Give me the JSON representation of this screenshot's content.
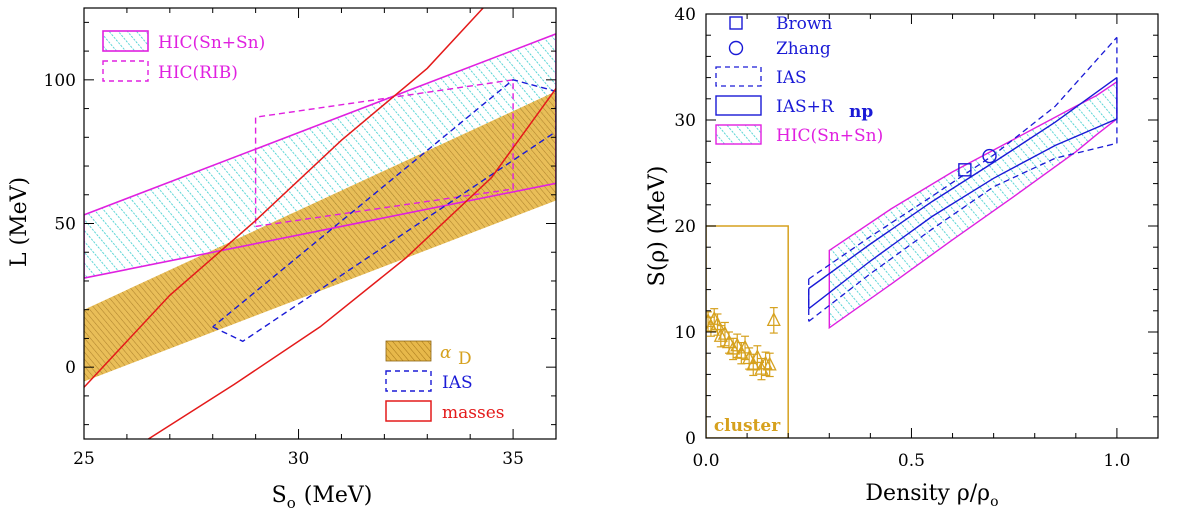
{
  "colors": {
    "magenta": "#e020e0",
    "cyan": "#33cccc",
    "gold": "#d6a11e",
    "blue": "#1a1ad6",
    "red": "#e41a1a"
  },
  "chart_data": [
    {
      "type": "area",
      "xlabel": "S",
      "xlabel_sub": "o",
      "xlabel_unit": "(MeV)",
      "ylabel": "L (MeV)",
      "xlim": [
        25,
        36
      ],
      "ylim": [
        -25,
        125
      ],
      "xticks": [
        25,
        30,
        35
      ],
      "yticks": [
        0,
        50,
        100
      ],
      "legend_upper": [
        {
          "label": "HIC(Sn+Sn)",
          "key": "hic_snsn"
        },
        {
          "label": "HIC(RIB)",
          "key": "hic_rib"
        }
      ],
      "legend_lower": [
        {
          "label": "α",
          "sub": "D",
          "key": "alpha_d"
        },
        {
          "label": "IAS",
          "key": "ias"
        },
        {
          "label": "masses",
          "key": "masses"
        }
      ],
      "series": {
        "hic_snsn": {
          "polygon": [
            [
              25,
              31
            ],
            [
              36,
              64
            ],
            [
              36,
              116
            ],
            [
              25,
              53
            ]
          ]
        },
        "hic_rib": {
          "polygon": [
            [
              29,
              49
            ],
            [
              35,
              62
            ],
            [
              35,
              100
            ],
            [
              29,
              87
            ]
          ]
        },
        "alpha_d": {
          "polygon": [
            [
              25,
              -5
            ],
            [
              36,
              58
            ],
            [
              36,
              96
            ],
            [
              25,
              20
            ]
          ]
        },
        "ias": {
          "polygon": [
            [
              28.0,
              14
            ],
            [
              28.7,
              9
            ],
            [
              36,
              82
            ],
            [
              36,
              96
            ],
            [
              35,
              100
            ],
            [
              28.0,
              14
            ]
          ]
        },
        "masses": {
          "lines": [
            [
              [
                25,
                -7
              ],
              [
                27,
                25
              ],
              [
                29,
                51
              ],
              [
                31,
                79
              ],
              [
                33,
                104
              ],
              [
                34.3,
                125
              ]
            ],
            [
              [
                26.5,
                -25
              ],
              [
                28.5,
                -6
              ],
              [
                30.5,
                14
              ],
              [
                32.5,
                38
              ],
              [
                34.5,
                66
              ],
              [
                36,
                97
              ]
            ]
          ]
        }
      }
    },
    {
      "type": "area",
      "xlabel": "Density ρ/ρ",
      "xlabel_sub": "o",
      "ylabel": "S(ρ) (MeV)",
      "xlim": [
        0,
        1.1
      ],
      "ylim": [
        0,
        40
      ],
      "xticks": [
        "0.0",
        "0.5",
        "1.0"
      ],
      "yticks": [
        0,
        10,
        20,
        30,
        40
      ],
      "legend": [
        {
          "label": "Brown",
          "key": "brown"
        },
        {
          "label": "Zhang",
          "key": "zhang"
        },
        {
          "label": "IAS",
          "key": "ias"
        },
        {
          "label": "IAS+R",
          "sub": "np",
          "key": "ias_rnp"
        },
        {
          "label": "HIC(Sn+Sn)",
          "key": "hic_snsn"
        }
      ],
      "cluster_label": "cluster",
      "series": {
        "brown": {
          "x": 0.63,
          "y": 25.3
        },
        "zhang": {
          "x": 0.69,
          "y": 26.6
        },
        "cluster_box": {
          "x": [
            0,
            0.2
          ],
          "y": [
            0,
            20
          ]
        },
        "cluster_points": [
          {
            "x": 0.005,
            "y": 11.0,
            "err": 0.9
          },
          {
            "x": 0.012,
            "y": 10.5,
            "err": 0.9
          },
          {
            "x": 0.02,
            "y": 11.2,
            "err": 1.0
          },
          {
            "x": 0.028,
            "y": 10.7,
            "err": 1.0
          },
          {
            "x": 0.036,
            "y": 9.6,
            "err": 1.0
          },
          {
            "x": 0.046,
            "y": 9.8,
            "err": 1.1
          },
          {
            "x": 0.056,
            "y": 9.0,
            "err": 1.0
          },
          {
            "x": 0.066,
            "y": 8.4,
            "err": 1.0
          },
          {
            "x": 0.076,
            "y": 8.7,
            "err": 1.1
          },
          {
            "x": 0.086,
            "y": 8.0,
            "err": 1.0
          },
          {
            "x": 0.095,
            "y": 8.5,
            "err": 1.1
          },
          {
            "x": 0.105,
            "y": 7.5,
            "err": 1.0
          },
          {
            "x": 0.115,
            "y": 6.9,
            "err": 1.0
          },
          {
            "x": 0.125,
            "y": 7.6,
            "err": 1.1
          },
          {
            "x": 0.135,
            "y": 6.5,
            "err": 1.0
          },
          {
            "x": 0.145,
            "y": 7.0,
            "err": 1.1
          },
          {
            "x": 0.155,
            "y": 6.9,
            "err": 1.1
          },
          {
            "x": 0.165,
            "y": 11.1,
            "err": 1.2
          }
        ],
        "hic_snsn": {
          "upper": [
            [
              0.3,
              17.7
            ],
            [
              0.45,
              21.6
            ],
            [
              0.6,
              25.1
            ],
            [
              0.75,
              28.2
            ],
            [
              0.9,
              31.3
            ],
            [
              0.95,
              32.3
            ],
            [
              1.0,
              33.6
            ]
          ],
          "lower": [
            [
              0.3,
              10.4
            ],
            [
              0.45,
              14.5
            ],
            [
              0.6,
              18.7
            ],
            [
              0.75,
              22.8
            ],
            [
              0.9,
              27.0
            ],
            [
              0.95,
              28.6
            ],
            [
              1.0,
              30.1
            ]
          ]
        },
        "ias": {
          "upper": [
            [
              0.25,
              15.0
            ],
            [
              0.4,
              19.0
            ],
            [
              0.55,
              22.8
            ],
            [
              0.7,
              26.7
            ],
            [
              0.85,
              31.3
            ],
            [
              1.0,
              37.8
            ]
          ],
          "lower": [
            [
              0.25,
              11.0
            ],
            [
              0.4,
              15.5
            ],
            [
              0.55,
              19.7
            ],
            [
              0.7,
              23.7
            ],
            [
              0.85,
              26.4
            ],
            [
              1.0,
              27.8
            ]
          ]
        },
        "ias_rnp": {
          "upper": [
            [
              0.25,
              14.1
            ],
            [
              0.4,
              18.3
            ],
            [
              0.55,
              22.3
            ],
            [
              0.7,
              26.0
            ],
            [
              0.85,
              29.8
            ],
            [
              1.0,
              34.0
            ]
          ],
          "lower": [
            [
              0.25,
              12.2
            ],
            [
              0.4,
              16.7
            ],
            [
              0.55,
              20.9
            ],
            [
              0.7,
              24.5
            ],
            [
              0.85,
              27.6
            ],
            [
              1.0,
              30.1
            ]
          ]
        }
      }
    }
  ]
}
